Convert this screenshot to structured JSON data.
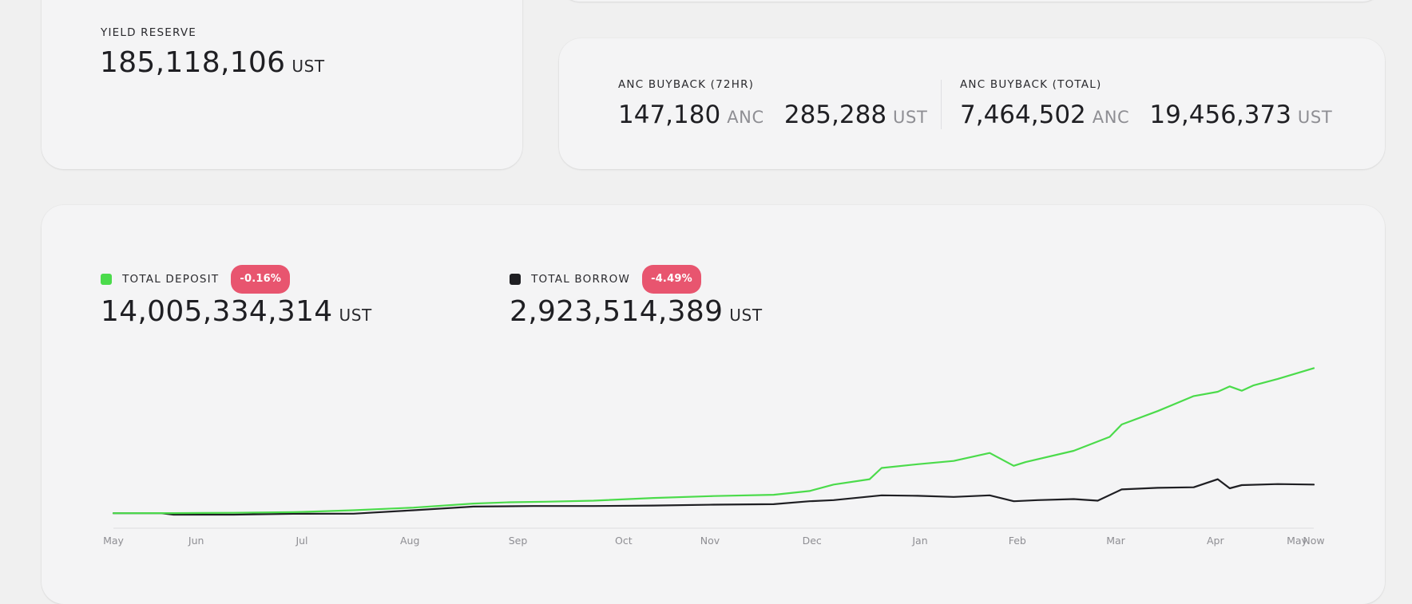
{
  "top_card_stub": {},
  "yield_reserve": {
    "label": "YIELD RESERVE",
    "value": "185,118,106",
    "unit": "UST"
  },
  "anc_buyback": {
    "h72": {
      "label": "ANC BUYBACK (72HR)",
      "anc_value": "147,180",
      "anc_unit": "ANC",
      "ust_value": "285,288",
      "ust_unit": "UST"
    },
    "total": {
      "label": "ANC BUYBACK (TOTAL)",
      "anc_value": "7,464,502",
      "anc_unit": "ANC",
      "ust_value": "19,456,373",
      "ust_unit": "UST"
    }
  },
  "market": {
    "deposit": {
      "label": "TOTAL DEPOSIT",
      "change": "-0.16%",
      "value": "14,005,334,314",
      "unit": "UST",
      "color": "#4bdb4b"
    },
    "borrow": {
      "label": "TOTAL BORROW",
      "change": "-4.49%",
      "value": "2,923,514,389",
      "unit": "UST",
      "color": "#1f1f23"
    },
    "badge_color": "#e8556f"
  },
  "chart_data": {
    "type": "line",
    "x_ticks": [
      "May",
      "Jun",
      "Jul",
      "Aug",
      "Sep",
      "Oct",
      "Nov",
      "Dec",
      "Jan",
      "Feb",
      "Mar",
      "Apr",
      "May",
      "Now"
    ],
    "x_tick_positions": [
      0,
      0.069,
      0.157,
      0.247,
      0.337,
      0.425,
      0.497,
      0.582,
      0.672,
      0.753,
      0.835,
      0.918,
      0.986,
      1.0
    ],
    "ylim": [
      0,
      14500
    ],
    "grid": false,
    "series": [
      {
        "name": "TOTAL DEPOSIT",
        "color": "#4bdb4b",
        "x": [
          0,
          0.05,
          0.1,
          0.15,
          0.2,
          0.25,
          0.3,
          0.33,
          0.36,
          0.4,
          0.45,
          0.5,
          0.55,
          0.58,
          0.6,
          0.63,
          0.64,
          0.67,
          0.7,
          0.73,
          0.75,
          0.76,
          0.8,
          0.83,
          0.84,
          0.87,
          0.9,
          0.92,
          0.93,
          0.94,
          0.95,
          0.97,
          1.0
        ],
        "values": [
          280,
          290,
          320,
          380,
          560,
          800,
          1180,
          1300,
          1350,
          1450,
          1700,
          1880,
          2000,
          2350,
          2950,
          3450,
          4500,
          4850,
          5150,
          5900,
          4700,
          5050,
          6100,
          7400,
          8550,
          9800,
          11200,
          11600,
          12100,
          11700,
          12200,
          12800,
          13800
        ]
      },
      {
        "name": "TOTAL BORROW",
        "color": "#1f1f23",
        "x": [
          0,
          0.04,
          0.05,
          0.1,
          0.15,
          0.2,
          0.25,
          0.3,
          0.35,
          0.4,
          0.45,
          0.5,
          0.55,
          0.58,
          0.6,
          0.64,
          0.67,
          0.7,
          0.73,
          0.75,
          0.77,
          0.8,
          0.82,
          0.84,
          0.87,
          0.9,
          0.92,
          0.93,
          0.94,
          0.97,
          1.0
        ],
        "values": [
          280,
          280,
          150,
          150,
          230,
          240,
          560,
          900,
          950,
          950,
          1000,
          1080,
          1120,
          1400,
          1500,
          1950,
          1900,
          1800,
          1950,
          1400,
          1500,
          1600,
          1450,
          2500,
          2650,
          2700,
          3450,
          2600,
          2900,
          3000,
          2950
        ]
      }
    ]
  }
}
